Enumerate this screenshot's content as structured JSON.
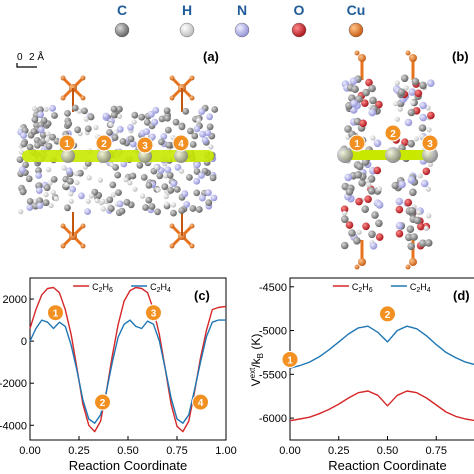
{
  "legend_atoms": [
    {
      "symbol": "C",
      "color": "#8a8a8a"
    },
    {
      "symbol": "H",
      "color": "#e6e6e6"
    },
    {
      "symbol": "N",
      "color": "#b9b9ee"
    },
    {
      "symbol": "O",
      "color": "#d8242c"
    },
    {
      "symbol": "Cu",
      "color": "#e8731d"
    }
  ],
  "scale_bar": {
    "zero": "0",
    "value": "2 Å"
  },
  "panels": {
    "a": {
      "label": "(a)",
      "markers": [
        "1",
        "2",
        "3",
        "4"
      ]
    },
    "b": {
      "label": "(b)",
      "markers": [
        "1",
        "2",
        "3"
      ]
    },
    "c": {
      "label": "(c)",
      "markers": [
        "1",
        "2",
        "3",
        "4"
      ]
    },
    "d": {
      "label": "(d)",
      "markers": [
        "1",
        "2"
      ]
    }
  },
  "colors": {
    "c2h6": "#d62728",
    "c2h4": "#1f77b4",
    "marker": "#f29122",
    "guest": "#c8e800"
  },
  "chart_data": [
    {
      "type": "line",
      "panel": "c",
      "xlabel": "Reaction Coordinate",
      "ylabel": "",
      "xlim": [
        0.0,
        1.0
      ],
      "ylim": [
        -4700,
        3000
      ],
      "xticks": [
        "0.00",
        "0.25",
        "0.50",
        "0.75",
        "1.00"
      ],
      "yticks": [
        {
          "v": 2000,
          "label": "2000"
        },
        {
          "v": 0,
          "label": "0"
        },
        {
          "v": -2000,
          "label": "-2000"
        },
        {
          "v": -4000,
          "label": "-4000"
        }
      ],
      "legend_position": "top-center",
      "series": [
        {
          "name": "C2H6",
          "sub": [
            "C",
            "2",
            "H",
            "6"
          ],
          "color": "#d62728",
          "x": [
            0.0,
            0.03,
            0.06,
            0.09,
            0.12,
            0.15,
            0.18,
            0.21,
            0.24,
            0.27,
            0.3,
            0.33,
            0.36,
            0.39,
            0.42,
            0.45,
            0.48,
            0.51,
            0.54,
            0.57,
            0.6,
            0.63,
            0.66,
            0.69,
            0.72,
            0.75,
            0.78,
            0.81,
            0.84,
            0.87,
            0.9,
            0.93,
            0.96,
            1.0
          ],
          "y": [
            600,
            1500,
            2200,
            2500,
            2550,
            2300,
            1500,
            300,
            -1300,
            -3000,
            -4000,
            -4300,
            -3800,
            -2400,
            -700,
            800,
            1900,
            2400,
            2550,
            2500,
            2300,
            1500,
            300,
            -1300,
            -3000,
            -4050,
            -4300,
            -3800,
            -2400,
            -800,
            500,
            1500,
            1600,
            1650
          ]
        },
        {
          "name": "C2H4",
          "sub": [
            "C",
            "2",
            "H",
            "4"
          ],
          "color": "#1f77b4",
          "x": [
            0.0,
            0.03,
            0.06,
            0.09,
            0.12,
            0.15,
            0.18,
            0.21,
            0.24,
            0.27,
            0.3,
            0.33,
            0.36,
            0.39,
            0.42,
            0.45,
            0.48,
            0.51,
            0.54,
            0.57,
            0.6,
            0.63,
            0.66,
            0.69,
            0.72,
            0.75,
            0.78,
            0.81,
            0.84,
            0.87,
            0.9,
            0.93,
            0.96,
            1.0
          ],
          "y": [
            0,
            600,
            1000,
            900,
            600,
            900,
            700,
            -200,
            -1400,
            -2800,
            -3700,
            -3900,
            -3500,
            -2400,
            -1000,
            200,
            800,
            1000,
            700,
            600,
            950,
            800,
            0,
            -1300,
            -2700,
            -3700,
            -3900,
            -3500,
            -2300,
            -1000,
            200,
            900,
            1000,
            1000
          ]
        }
      ]
    },
    {
      "type": "line",
      "panel": "d",
      "xlabel": "Reaction Coordinate",
      "ylabel": "V^ext/k_B (K)",
      "ylabel_parts": [
        "V",
        "ext",
        "/k",
        "B",
        " (K)"
      ],
      "xlim": [
        0.0,
        1.0
      ],
      "ylim": [
        -6250,
        -4400
      ],
      "xticks": [
        "0.00",
        "0.25",
        "0.50",
        "0.75",
        "1.00"
      ],
      "yticks": [
        {
          "v": -4500,
          "label": "-4500"
        },
        {
          "v": -5000,
          "label": "-5000"
        },
        {
          "v": -5500,
          "label": "-5500"
        },
        {
          "v": -6000,
          "label": "-6000"
        }
      ],
      "legend_position": "top-center",
      "series": [
        {
          "name": "C2H6",
          "sub": [
            "C",
            "2",
            "H",
            "6"
          ],
          "color": "#d62728",
          "x": [
            0.0,
            0.05,
            0.1,
            0.15,
            0.2,
            0.25,
            0.3,
            0.35,
            0.4,
            0.45,
            0.5,
            0.55,
            0.6,
            0.65,
            0.7,
            0.75,
            0.8,
            0.85,
            0.9,
            0.95,
            1.0
          ],
          "y": [
            -6030,
            -6010,
            -5990,
            -5950,
            -5900,
            -5840,
            -5770,
            -5710,
            -5690,
            -5740,
            -5860,
            -5740,
            -5690,
            -5710,
            -5770,
            -5850,
            -5930,
            -5980,
            -6010,
            -6030,
            -6050
          ]
        },
        {
          "name": "C2H4",
          "sub": [
            "C",
            "2",
            "H",
            "4"
          ],
          "color": "#1f77b4",
          "x": [
            0.0,
            0.05,
            0.1,
            0.15,
            0.2,
            0.25,
            0.3,
            0.35,
            0.4,
            0.45,
            0.5,
            0.55,
            0.6,
            0.65,
            0.7,
            0.75,
            0.8,
            0.85,
            0.9,
            0.95,
            1.0
          ],
          "y": [
            -5430,
            -5400,
            -5360,
            -5300,
            -5220,
            -5130,
            -5040,
            -4970,
            -4950,
            -5020,
            -5130,
            -5000,
            -4950,
            -4980,
            -5060,
            -5160,
            -5250,
            -5310,
            -5360,
            -5390,
            -5410
          ]
        }
      ]
    }
  ]
}
